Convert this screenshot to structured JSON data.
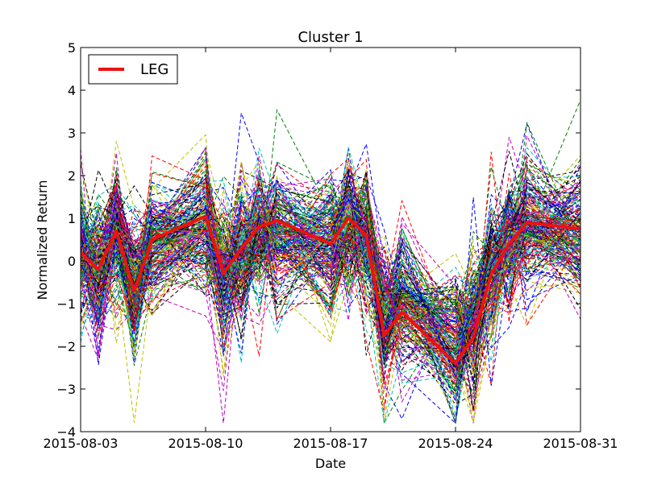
{
  "chart_data": {
    "type": "line",
    "title": "Cluster 1",
    "xlabel": "Date",
    "ylabel": "Normalized Return",
    "ylim": [
      -4,
      5
    ],
    "xlim": [
      "2015-08-03",
      "2015-08-31"
    ],
    "x_ticks": [
      "2015-08-03",
      "2015-08-10",
      "2015-08-17",
      "2015-08-24",
      "2015-08-31"
    ],
    "y_ticks": [
      -4,
      -3,
      -2,
      -1,
      0,
      1,
      2,
      3,
      4,
      5
    ],
    "y_tick_labels": [
      "−4",
      "−3",
      "−2",
      "−1",
      "0",
      "1",
      "2",
      "3",
      "4",
      "5"
    ],
    "x": [
      "2015-08-03",
      "2015-08-04",
      "2015-08-05",
      "2015-08-06",
      "2015-08-07",
      "2015-08-10",
      "2015-08-11",
      "2015-08-12",
      "2015-08-13",
      "2015-08-14",
      "2015-08-17",
      "2015-08-18",
      "2015-08-19",
      "2015-08-20",
      "2015-08-21",
      "2015-08-24",
      "2015-08-25",
      "2015-08-26",
      "2015-08-27",
      "2015-08-28",
      "2015-08-31"
    ],
    "highlight_series": {
      "name": "LEG",
      "color": "#ee1111",
      "values": [
        0.2,
        -0.2,
        0.7,
        -0.7,
        0.5,
        1.05,
        -0.3,
        0.3,
        0.8,
        0.95,
        0.4,
        1.0,
        0.6,
        -1.75,
        -1.2,
        -2.4,
        -1.8,
        -0.3,
        0.4,
        0.9,
        0.75
      ]
    },
    "background_series_note_style": "dashed",
    "background_colors": [
      "#0000ff",
      "#008000",
      "#ff0000",
      "#00bfbf",
      "#bf00bf",
      "#bfbf00",
      "#000000"
    ],
    "legend": {
      "position": "top-left",
      "entries": [
        "LEG"
      ]
    },
    "grid": false
  }
}
